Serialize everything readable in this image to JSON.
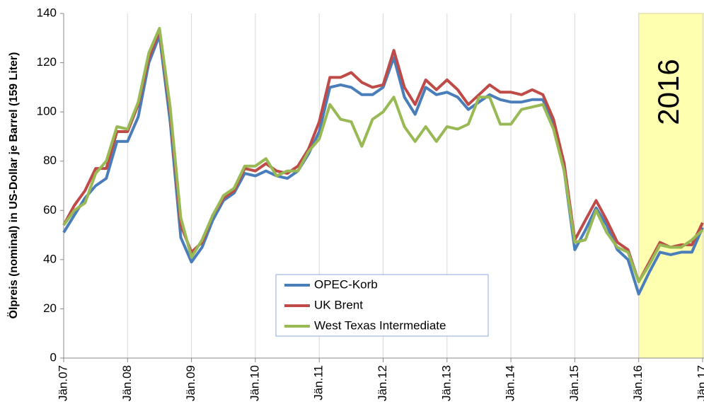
{
  "chart_data": {
    "type": "line",
    "y_label": "Ölpreis (nominal) in US-Dollar je Barrel (159 Liter)",
    "categories": [
      "Jän.07",
      null,
      null,
      null,
      null,
      null,
      "Jän.08",
      null,
      null,
      null,
      null,
      null,
      "Jän.09",
      null,
      null,
      null,
      null,
      null,
      "Jän.10",
      null,
      null,
      null,
      null,
      null,
      "Jän.11",
      null,
      null,
      null,
      null,
      null,
      "Jän.12",
      null,
      null,
      null,
      null,
      null,
      "Jän.13",
      null,
      null,
      null,
      null,
      null,
      "Jän.14",
      null,
      null,
      null,
      null,
      null,
      "Jän.15",
      null,
      null,
      null,
      null,
      null,
      "Jän.16",
      null,
      null,
      null,
      null,
      null,
      "Jän.17"
    ],
    "series": [
      {
        "name": "OPEC-Korb",
        "color": "#4a7ebb",
        "values": [
          51,
          58,
          65,
          70,
          73,
          88,
          88,
          98,
          120,
          131,
          96,
          49,
          39,
          45,
          56,
          64,
          67,
          75,
          74,
          76,
          74,
          73,
          76,
          83,
          92,
          110,
          111,
          110,
          107,
          107,
          110,
          122,
          106,
          99,
          110,
          107,
          108,
          106,
          101,
          104,
          107,
          105,
          104,
          104,
          105,
          105,
          95,
          76,
          44,
          52,
          61,
          54,
          44,
          40,
          26,
          35,
          43,
          42,
          43,
          43,
          53
        ]
      },
      {
        "name": "UK Brent",
        "color": "#be4b48",
        "values": [
          54,
          62,
          68,
          77,
          77,
          92,
          92,
          103,
          122,
          133,
          100,
          54,
          43,
          47,
          58,
          65,
          68,
          77,
          76,
          79,
          76,
          75,
          78,
          85,
          96,
          114,
          114,
          116,
          112,
          110,
          111,
          125,
          110,
          103,
          113,
          109,
          113,
          109,
          103,
          107,
          111,
          108,
          108,
          107,
          109,
          107,
          97,
          79,
          48,
          56,
          64,
          56,
          47,
          44,
          31,
          39,
          47,
          45,
          46,
          46,
          55
        ]
      },
      {
        "name": "West Texas Intermediate",
        "color": "#98b954",
        "values": [
          54,
          60,
          63,
          75,
          80,
          94,
          93,
          104,
          124,
          134,
          102,
          57,
          41,
          48,
          58,
          66,
          69,
          78,
          78,
          81,
          74,
          76,
          76,
          84,
          89,
          103,
          97,
          96,
          86,
          97,
          100,
          106,
          94,
          88,
          94,
          88,
          94,
          93,
          95,
          106,
          106,
          95,
          95,
          101,
          102,
          103,
          93,
          76,
          47,
          48,
          60,
          51,
          45,
          43,
          31,
          38,
          46,
          45,
          45,
          48,
          52
        ]
      }
    ],
    "ylim": [
      0,
      140
    ],
    "yticks": [
      0,
      20,
      40,
      60,
      80,
      100,
      120,
      140
    ],
    "grid": "x",
    "highlight": {
      "label": "2016",
      "start": 54,
      "color": "#ffffb0"
    },
    "legend": "bottom-center"
  }
}
